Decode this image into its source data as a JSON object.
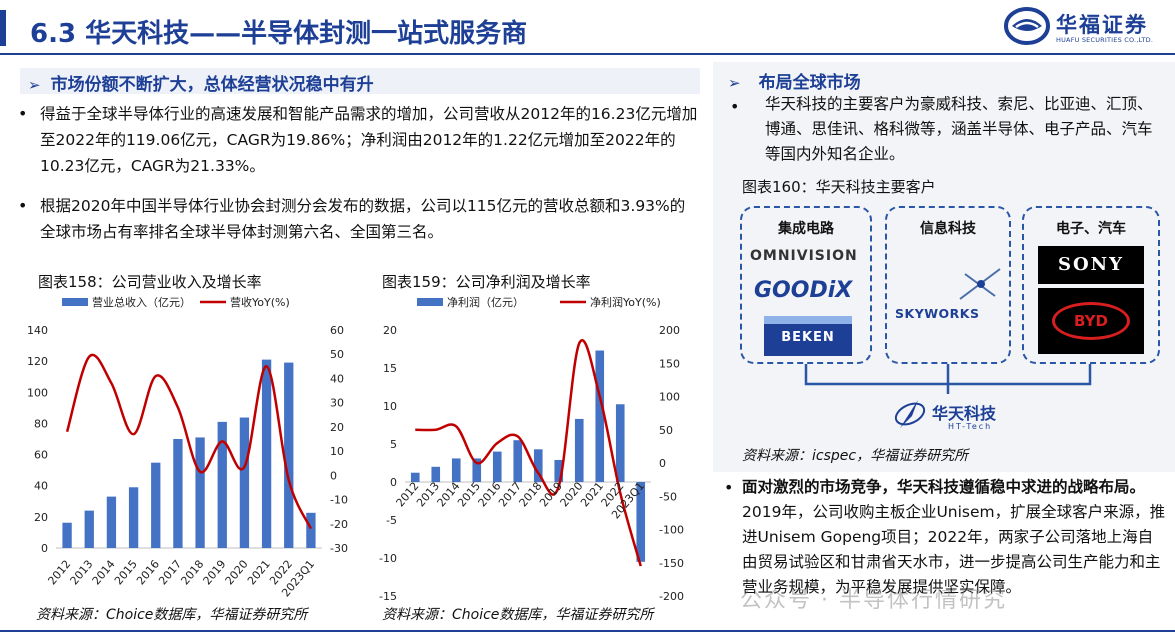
{
  "header": {
    "title": "6.3 华天科技——半导体封测一站式服务商",
    "logo_name": "华福证券",
    "logo_en": "HUAFU SECURITIES CO.,LTD."
  },
  "left": {
    "section_title": "市场份额不断扩大，总体经营状况稳中有升",
    "bullets": [
      "得益于全球半导体行业的高速发展和智能产品需求的增加，公司营收从2012年的16.23亿元增加至2022年的119.06亿元，CAGR为19.86%；净利润由2012年的1.22亿元增加至2022年的10.23亿元，CAGR为21.33%。",
      "根据2020年中国半导体行业协会封测分会发布的数据，公司以115亿元的营收总额和3.93%的全球市场占有率排名全球半导体封测第六名、全国第三名。"
    ],
    "bullet_symbol": "•"
  },
  "right": {
    "section_title": "布局全球市场",
    "bullet": "华天科技的主要客户为豪威科技、索尼、比亚迪、汇顶、博通、思佳讯、格科微等，涵盖半导体、电子产品、汽车等国内外知名企业。",
    "figure_title": "图表160：华天科技主要客户",
    "groups": [
      {
        "title": "集成电路",
        "logos": [
          "OMNIVISION",
          "GOODiX",
          "BEKEN"
        ]
      },
      {
        "title": "信息科技",
        "logos": [
          "SKYWORKS"
        ]
      },
      {
        "title": "电子、汽车",
        "logos": [
          "SONY",
          "BYD"
        ]
      }
    ],
    "center_logo": "华天科技",
    "center_logo_en": "HT-Tech",
    "source": "资料来源：icspec，华福证券研究所",
    "strategy_bold": "面对激烈的市场竞争，华天科技遵循稳中求进的战略布局。",
    "strategy_text": "2019年，公司收购主板企业Unisem，扩展全球客户来源，推进Unisem Gopeng项目；2022年，两家子公司落地上海自由贸易试验区和甘肃省天水市，进一步提高公司生产能力和主营业务规模，为平稳发展提供坚实保障。"
  },
  "colors": {
    "brand_blue": "#1d3f96",
    "bar_blue": "#4472c4",
    "line_red": "#c00000"
  },
  "chart_data": [
    {
      "type": "bar",
      "title": "图表158：公司营业收入及增长率",
      "categories": [
        "2012",
        "2013",
        "2014",
        "2015",
        "2016",
        "2017",
        "2018",
        "2019",
        "2020",
        "2021",
        "2022",
        "2023Q1"
      ],
      "series": [
        {
          "name": "营业总收入（亿元）",
          "type": "bar",
          "axis": "left",
          "values": [
            16.23,
            24.0,
            33.0,
            39.0,
            54.8,
            70.0,
            71.0,
            81.0,
            83.8,
            120.97,
            119.06,
            22.6
          ]
        },
        {
          "name": "营收YoY(%)",
          "type": "line",
          "axis": "right",
          "values": [
            18.0,
            49.0,
            38.0,
            17.0,
            41.0,
            28.0,
            1.5,
            14.0,
            3.5,
            45.0,
            -2.0,
            -22.0
          ]
        }
      ],
      "ylim_left": [
        0,
        140
      ],
      "yticks_left": [
        0,
        20,
        40,
        60,
        80,
        100,
        120,
        140
      ],
      "ylim_right": [
        -30,
        60
      ],
      "yticks_right": [
        -30,
        -20,
        -10,
        0,
        10,
        20,
        30,
        40,
        50,
        60
      ],
      "source": "资料来源：Choice数据库，华福证券研究所"
    },
    {
      "type": "bar",
      "title": "图表159：公司净利润及增长率",
      "categories": [
        "2012",
        "2013",
        "2014",
        "2015",
        "2016",
        "2017",
        "2018",
        "2019",
        "2020",
        "2021",
        "2022",
        "2023Q1"
      ],
      "series": [
        {
          "name": "净利润（亿元）",
          "type": "bar",
          "axis": "left",
          "values": [
            1.22,
            2.0,
            3.1,
            3.1,
            4.0,
            5.5,
            4.3,
            2.9,
            8.3,
            17.3,
            10.23,
            -10.5
          ]
        },
        {
          "name": "净利润YoY(%)",
          "type": "line",
          "axis": "right",
          "values": [
            50.0,
            50.0,
            55.0,
            0.0,
            30.0,
            40.0,
            -15.0,
            -35.0,
            180.0,
            100.0,
            -45.0,
            -155.0
          ]
        }
      ],
      "ylim_left": [
        -15,
        20
      ],
      "yticks_left": [
        -15,
        -10,
        -5,
        0,
        5,
        10,
        15,
        20
      ],
      "ylim_right": [
        -200,
        200
      ],
      "yticks_right": [
        -200,
        -150,
        -100,
        -50,
        0,
        50,
        100,
        150,
        200
      ],
      "source": "资料来源：Choice数据库，华福证券研究所"
    }
  ],
  "watermark": "公众号 · 半导体行情研究"
}
